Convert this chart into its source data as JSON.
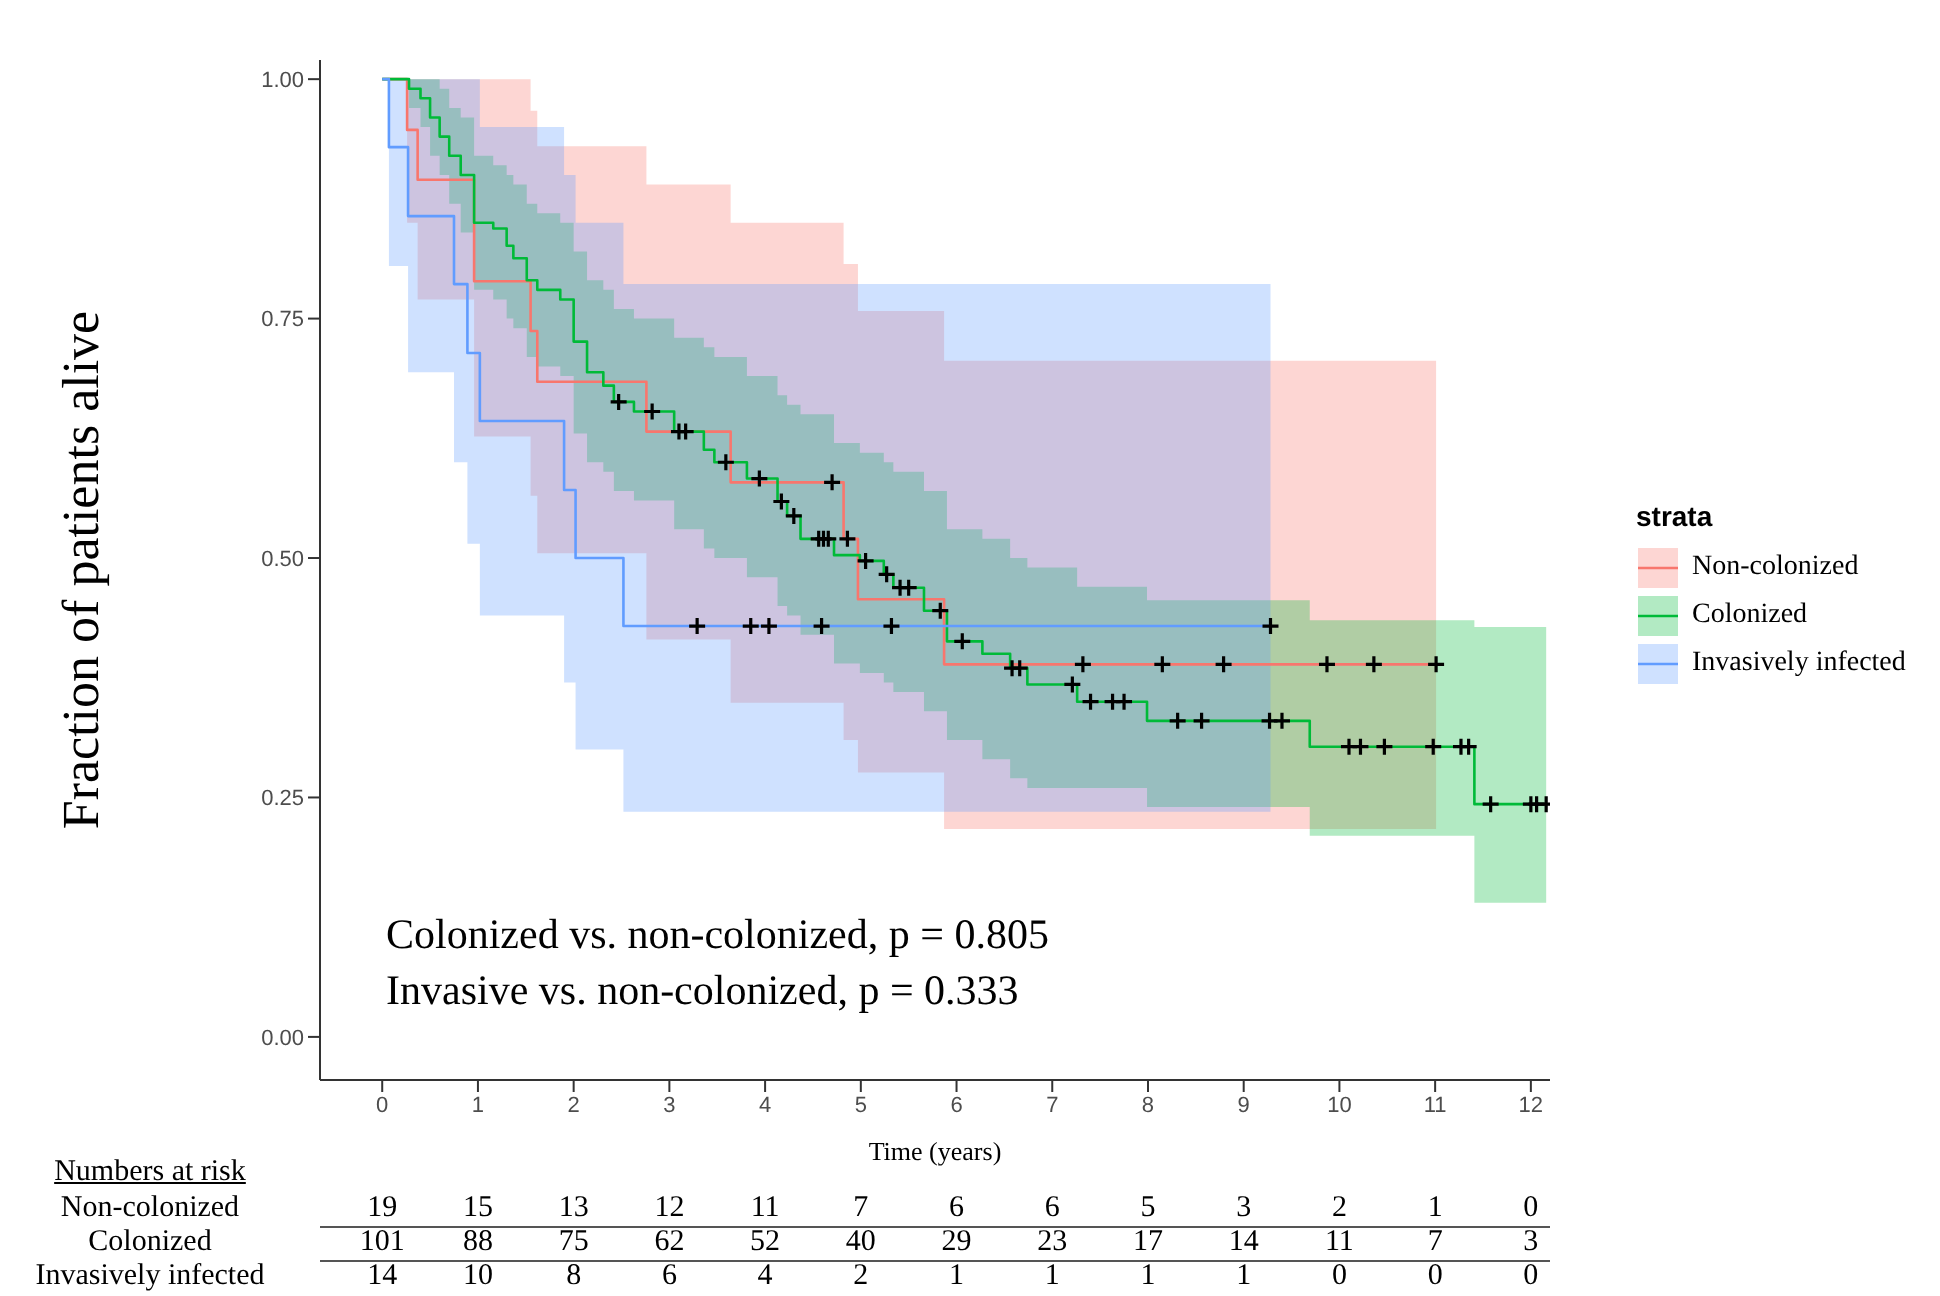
{
  "chart_data": {
    "type": "step",
    "xlabel": "Time (years)",
    "ylabel": "Fraction of patients alive",
    "legend": "right",
    "legend_title": "strata",
    "marker": "none",
    "xlim": [
      -0.65,
      12.2
    ],
    "xticks": [
      0,
      1,
      2,
      3,
      4,
      5,
      6,
      7,
      8,
      9,
      10,
      11,
      12
    ],
    "ylim": [
      -0.045,
      1.02
    ],
    "yticks": [
      {
        "value": 0,
        "label": "0.00"
      },
      {
        "value": 0.25,
        "label": "0.25"
      },
      {
        "value": 0.5,
        "label": "0.50"
      },
      {
        "value": 0.75,
        "label": "0.75"
      },
      {
        "value": 1,
        "label": "1.00"
      }
    ],
    "annotations": [
      "Colonized vs. non-colonized, p = 0.805",
      "Invasive vs. non-colonized, p = 0.333",
      "Numbers at risk",
      "Non-colonized",
      "19 15 13 12 11 7 6 6 5 3 2 1 0",
      "Colonized",
      "101 88 75 62 52 40 29 23 17 14 11 7 3",
      "Invasively infected",
      "14 10 8 6 4 2 1 1 1 1 0 0 0"
    ],
    "series": [
      {
        "name": "Non-colonized",
        "color": "#f8766d",
        "x": [
          0,
          0.26,
          0.37,
          0.96,
          1.55,
          1.62,
          2.76,
          3.64,
          4.82,
          4.97,
          5.87,
          11.01
        ],
        "values": [
          1,
          0.947,
          0.895,
          0.789,
          0.737,
          0.684,
          0.632,
          0.579,
          0.52,
          0.457,
          0.389,
          0.389
        ],
        "lower": [
          1,
          0.85,
          0.77,
          0.627,
          0.565,
          0.505,
          0.415,
          0.349,
          0.31,
          0.276,
          0.217,
          0.217
        ],
        "upper": [
          1,
          1,
          1,
          1,
          0.967,
          0.93,
          0.89,
          0.85,
          0.807,
          0.758,
          0.706,
          0.706
        ]
      },
      {
        "name": "Colonized",
        "color": "#00ba38",
        "x": [
          0,
          0.28,
          0.4,
          0.5,
          0.6,
          0.7,
          0.82,
          0.96,
          1.16,
          1.3,
          1.37,
          1.51,
          1.62,
          1.86,
          2.0,
          2.14,
          2.31,
          2.42,
          2.63,
          3.05,
          3.36,
          3.47,
          3.81,
          4.13,
          4.23,
          4.37,
          4.72,
          4.99,
          5.24,
          5.34,
          5.66,
          5.9,
          6.27,
          6.56,
          6.74,
          7.26,
          7.99,
          9.69,
          11.41,
          12.16
        ],
        "values": [
          1,
          0.99,
          0.98,
          0.96,
          0.94,
          0.92,
          0.9,
          0.85,
          0.844,
          0.826,
          0.813,
          0.79,
          0.78,
          0.77,
          0.726,
          0.694,
          0.68,
          0.663,
          0.653,
          0.632,
          0.613,
          0.6,
          0.583,
          0.559,
          0.544,
          0.52,
          0.503,
          0.497,
          0.483,
          0.469,
          0.445,
          0.413,
          0.4,
          0.385,
          0.368,
          0.35,
          0.33,
          0.303,
          0.243,
          0.243
        ],
        "lower": [
          1,
          0.97,
          0.95,
          0.92,
          0.9,
          0.87,
          0.84,
          0.78,
          0.77,
          0.75,
          0.74,
          0.71,
          0.7,
          0.69,
          0.63,
          0.6,
          0.59,
          0.57,
          0.56,
          0.53,
          0.51,
          0.5,
          0.48,
          0.45,
          0.44,
          0.42,
          0.39,
          0.38,
          0.37,
          0.36,
          0.34,
          0.31,
          0.29,
          0.27,
          0.26,
          0.26,
          0.24,
          0.21,
          0.14,
          0.14
        ],
        "upper": [
          1,
          1,
          1,
          1,
          0.99,
          0.97,
          0.96,
          0.92,
          0.91,
          0.9,
          0.89,
          0.87,
          0.86,
          0.85,
          0.82,
          0.79,
          0.78,
          0.76,
          0.75,
          0.73,
          0.72,
          0.71,
          0.69,
          0.67,
          0.66,
          0.65,
          0.62,
          0.61,
          0.6,
          0.59,
          0.57,
          0.53,
          0.52,
          0.5,
          0.49,
          0.47,
          0.456,
          0.435,
          0.428,
          0.428
        ]
      },
      {
        "name": "Invasively infected",
        "color": "#619cff",
        "x": [
          0,
          0.07,
          0.27,
          0.75,
          0.89,
          1.02,
          1.9,
          2.02,
          2.52,
          9.28
        ],
        "values": [
          1,
          0.929,
          0.857,
          0.786,
          0.714,
          0.643,
          0.571,
          0.5,
          0.429,
          0.429
        ],
        "lower": [
          1,
          0.805,
          0.694,
          0.6,
          0.515,
          0.44,
          0.37,
          0.3,
          0.235,
          0.235
        ],
        "upper": [
          1,
          1,
          1,
          1,
          1,
          0.95,
          0.9,
          0.85,
          0.786,
          0.786
        ]
      },
      {
        "type": "scatter",
        "marker": "cross",
        "color": "#000000",
        "x": [
          2.47,
          2.82,
          3.1,
          3.17,
          3.59,
          3.94,
          4.17,
          4.3,
          4.56,
          4.61,
          4.66,
          5.05,
          5.27,
          5.41,
          5.5,
          5.83,
          6.06,
          6.58,
          6.66,
          7.21,
          7.4,
          7.63,
          7.75,
          8.31,
          8.56,
          9.27,
          9.4,
          10.1,
          10.22,
          10.47,
          10.98,
          11.27,
          11.35,
          11.58,
          12.0,
          12.06,
          12.16,
          4.7,
          4.86,
          7.32,
          8.15,
          8.79,
          9.87,
          10.36,
          11.01,
          3.29,
          3.85,
          4.04,
          4.59,
          5.32,
          9.28
        ],
        "values": [
          0.663,
          0.653,
          0.632,
          0.632,
          0.6,
          0.583,
          0.559,
          0.544,
          0.52,
          0.52,
          0.52,
          0.497,
          0.483,
          0.469,
          0.469,
          0.445,
          0.413,
          0.385,
          0.385,
          0.368,
          0.35,
          0.35,
          0.35,
          0.33,
          0.33,
          0.33,
          0.33,
          0.303,
          0.303,
          0.303,
          0.303,
          0.303,
          0.303,
          0.243,
          0.243,
          0.243,
          0.243,
          0.579,
          0.52,
          0.389,
          0.389,
          0.389,
          0.389,
          0.389,
          0.389,
          0.429,
          0.429,
          0.429,
          0.429,
          0.429,
          0.429
        ]
      }
    ]
  }
}
